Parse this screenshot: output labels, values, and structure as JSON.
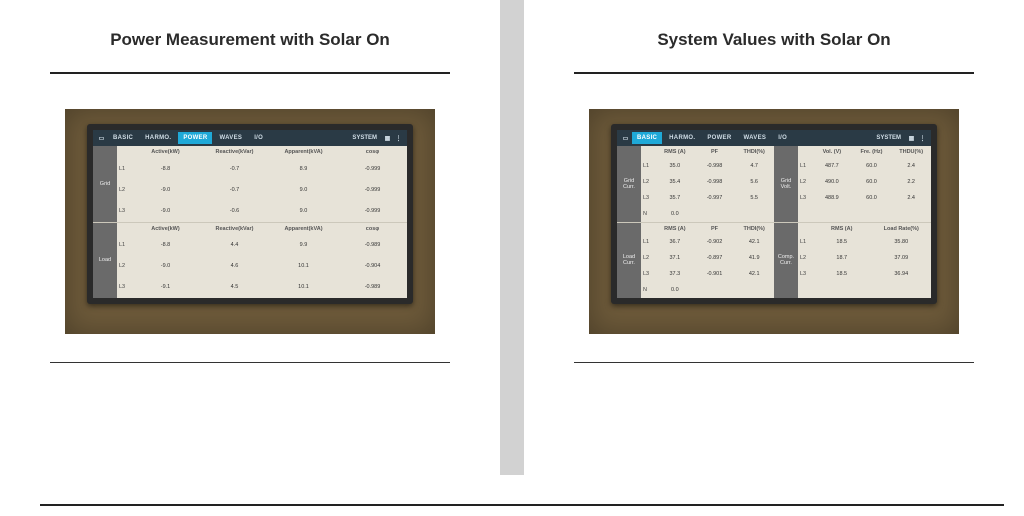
{
  "page": {
    "left_title": "Power Measurement with Solar On",
    "right_title": "System Values with Solar On"
  },
  "colors": {
    "page_bg": "#ffffff",
    "divider": "#d2d2d2",
    "rule": "#222222",
    "photo_bg": "#6d5a3a",
    "bezel": "#2a2a2a",
    "screen_bg": "#e7e3d8",
    "tabbar_bg": "#2a3a45",
    "tabbar_fg": "#d0dde6",
    "tab_active_bg": "#1fa9d8",
    "sidelabel_bg": "#6a6a6a"
  },
  "tabs": {
    "items": [
      "BASIC",
      "HARMO.",
      "POWER",
      "WAVES",
      "I/O"
    ],
    "system_label": "SYSTEM",
    "grid_icon": "▦",
    "more_icon": "⋮",
    "laptop_icon": "▭"
  },
  "left_device": {
    "active_tab_index": 2,
    "sections": [
      {
        "side": "Grid",
        "headers": [
          "Active(kW)",
          "Reactive(kVar)",
          "Apparent(kVA)",
          "cosφ"
        ],
        "row_labels": [
          "L1",
          "L2",
          "L3"
        ],
        "rows": [
          [
            "-8.8",
            "-0.7",
            "8.9",
            "-0.999"
          ],
          [
            "-9.0",
            "-0.7",
            "9.0",
            "-0.999"
          ],
          [
            "-9.0",
            "-0.6",
            "9.0",
            "-0.999"
          ]
        ]
      },
      {
        "side": "Load",
        "headers": [
          "Active(kW)",
          "Reactive(kVar)",
          "Apparent(kVA)",
          "cosφ"
        ],
        "row_labels": [
          "L1",
          "L2",
          "L3"
        ],
        "rows": [
          [
            "-8.8",
            "4.4",
            "9.9",
            "-0.989"
          ],
          [
            "-9.0",
            "4.6",
            "10.1",
            "-0.904"
          ],
          [
            "-9.1",
            "4.5",
            "10.1",
            "-0.989"
          ]
        ]
      }
    ]
  },
  "right_device": {
    "active_tab_index": 0,
    "sections": [
      {
        "left": {
          "side": "Grid Curr.",
          "headers": [
            "RMS (A)",
            "PF",
            "THDI(%)"
          ],
          "row_labels": [
            "L1",
            "L2",
            "L3",
            "N"
          ],
          "rows": [
            [
              "35.0",
              "-0.998",
              "4.7"
            ],
            [
              "35.4",
              "-0.998",
              "5.6"
            ],
            [
              "35.7",
              "-0.997",
              "5.5"
            ],
            [
              "0.0",
              "",
              ""
            ]
          ]
        },
        "right": {
          "side": "Grid Volt.",
          "headers": [
            "Vol. (V)",
            "Fre. (Hz)",
            "THDU(%)"
          ],
          "row_labels": [
            "L1",
            "L2",
            "L3"
          ],
          "rows": [
            [
              "487.7",
              "60.0",
              "2.4"
            ],
            [
              "490.0",
              "60.0",
              "2.2"
            ],
            [
              "488.9",
              "60.0",
              "2.4"
            ]
          ]
        }
      },
      {
        "left": {
          "side": "Load Curr.",
          "headers": [
            "RMS (A)",
            "PF",
            "THDI(%)"
          ],
          "row_labels": [
            "L1",
            "L2",
            "L3",
            "N"
          ],
          "rows": [
            [
              "36.7",
              "-0.902",
              "42.1"
            ],
            [
              "37.1",
              "-0.897",
              "41.9"
            ],
            [
              "37.3",
              "-0.901",
              "42.1"
            ],
            [
              "0.0",
              "",
              ""
            ]
          ]
        },
        "right": {
          "side": "Comp. Curr.",
          "headers": [
            "RMS (A)",
            "Load Rate(%)"
          ],
          "row_labels": [
            "L1",
            "L2",
            "L3"
          ],
          "rows": [
            [
              "18.5",
              "35.80"
            ],
            [
              "18.7",
              "37.09"
            ],
            [
              "18.5",
              "36.94"
            ]
          ]
        }
      }
    ]
  }
}
